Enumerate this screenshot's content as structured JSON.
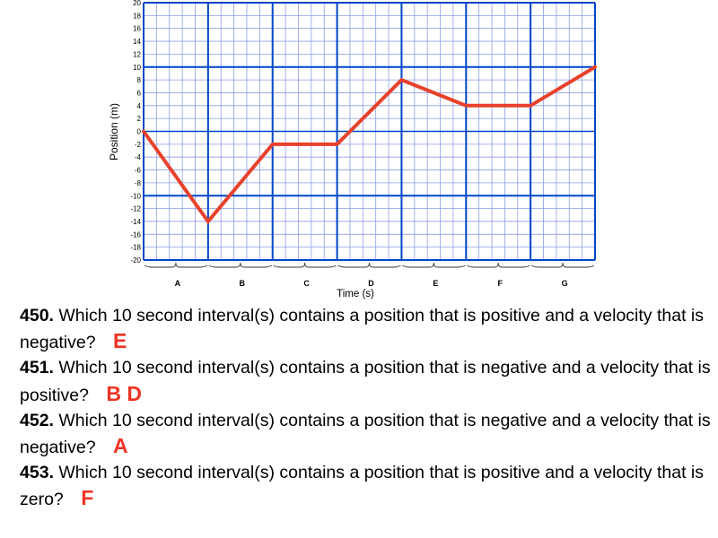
{
  "chart_data": {
    "type": "line",
    "title": "",
    "xlabel": "Time (s)",
    "ylabel": "Position (m)",
    "xlim": [
      0,
      70
    ],
    "ylim": [
      -20,
      20
    ],
    "y_ticks": [
      "20",
      "18",
      "16",
      "14",
      "12",
      "10",
      "8",
      "6",
      "4",
      "2",
      "0",
      "-2",
      "-4",
      "-6",
      "-8",
      "-10",
      "-12",
      "-14",
      "-16",
      "-18",
      "-20"
    ],
    "intervals": [
      "A",
      "B",
      "C",
      "D",
      "E",
      "F",
      "G"
    ],
    "series": [
      {
        "x": [
          0,
          10,
          20,
          30,
          40,
          50,
          60,
          70
        ],
        "y": [
          0,
          -14,
          -2,
          -2,
          8,
          4,
          4,
          10
        ]
      }
    ],
    "grid": true,
    "line_color": "#e8412c",
    "grid_color": "#0046c8",
    "minor_grid_color": "#8c9ee6"
  },
  "questions": [
    {
      "number": "450.",
      "text": "Which 10 second interval(s) contains a position that is positive and a velocity that is negative?",
      "answer": "E"
    },
    {
      "number": "451.",
      "text": "Which 10 second interval(s) contains a position that is negative and a velocity that is positive?",
      "answer": "B D"
    },
    {
      "number": "452.",
      "text": "Which 10 second interval(s) contains a position that is negative and a velocity that is negative?",
      "answer": "A"
    },
    {
      "number": "453.",
      "text": "Which 10 second interval(s) contains a position that is positive and a velocity that is zero?",
      "answer": "F"
    }
  ],
  "colors": {
    "answer": "#ee3424"
  }
}
